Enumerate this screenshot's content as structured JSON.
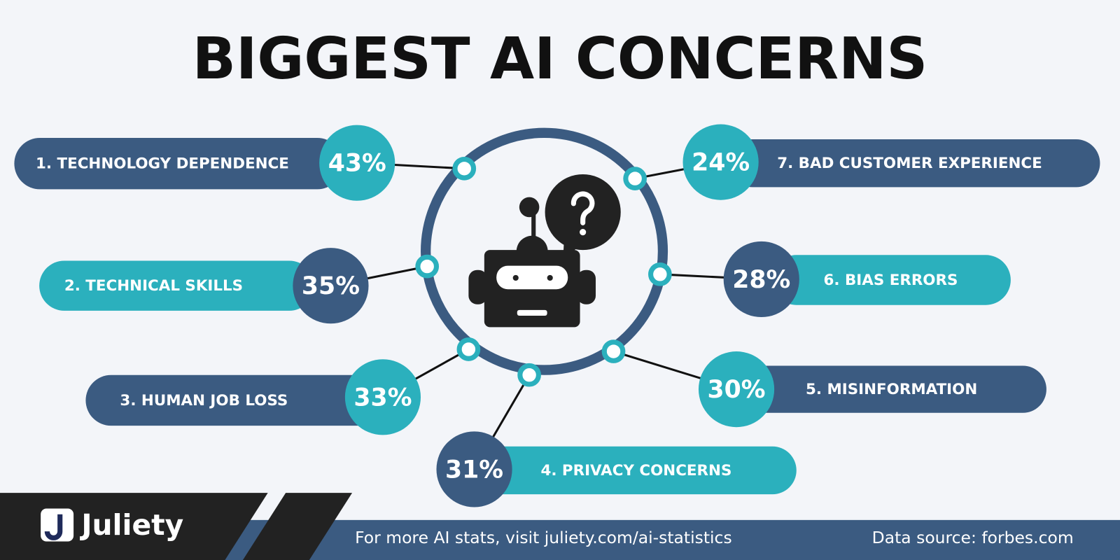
{
  "title": "BIGGEST AI CONCERNS",
  "items": [
    {
      "label": "1. TECHNOLOGY DEPENDENCE",
      "value": "43%"
    },
    {
      "label": "2. TECHNICAL SKILLS",
      "value": "35%"
    },
    {
      "label": "3. HUMAN JOB LOSS",
      "value": "33%"
    },
    {
      "label": "4. PRIVACY CONCERNS",
      "value": "31%"
    },
    {
      "label": "5. MISINFORMATION",
      "value": "30%"
    },
    {
      "label": "6. BIAS ERRORS",
      "value": "28%"
    },
    {
      "label": "7. BAD CUSTOMER EXPERIENCE",
      "value": "24%"
    }
  ],
  "footer": {
    "brand": "Juliety",
    "link": "For more AI stats, visit juliety.com/ai-statistics",
    "source": "Data source: forbes.com"
  }
}
